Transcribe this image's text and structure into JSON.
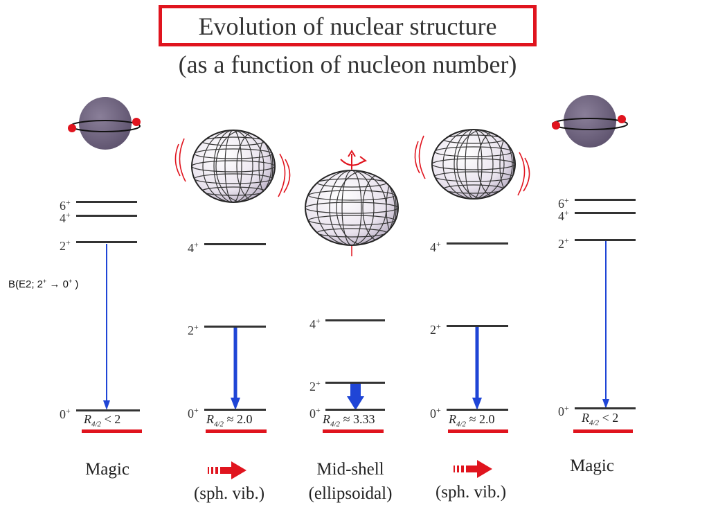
{
  "title": "Evolution of nuclear structure",
  "subtitle": "(as a function of nucleon number)",
  "transition_label": {
    "prefix": "B(E2; 2",
    "sup1": "+",
    "arrow": "→",
    "mid": " 0",
    "sup2": "+",
    "suffix": " )"
  },
  "spins": {
    "s0": "0",
    "s2": "2",
    "s4": "4",
    "s6": "6",
    "plus": "+"
  },
  "ratios": {
    "magic": "< 2",
    "vib": "≈ 2.0",
    "mid": "≈ 3.33",
    "symbol": "R",
    "sub": "4/2"
  },
  "captions": {
    "magic": "Magic",
    "vib": "(sph. vib.)",
    "mid_line1": "Mid-shell",
    "mid_line2": "(ellipsoidal)"
  },
  "colors": {
    "red": "#e0141e",
    "blue": "#1f45d6",
    "sphere": "#6e6280",
    "level": "#333333"
  },
  "icons": [
    "magic-nucleus-icon",
    "vibrating-ellipsoid-icon",
    "rotating-ellipsoid-icon",
    "rotation-arrow-icon",
    "fat-arrow-icon"
  ]
}
